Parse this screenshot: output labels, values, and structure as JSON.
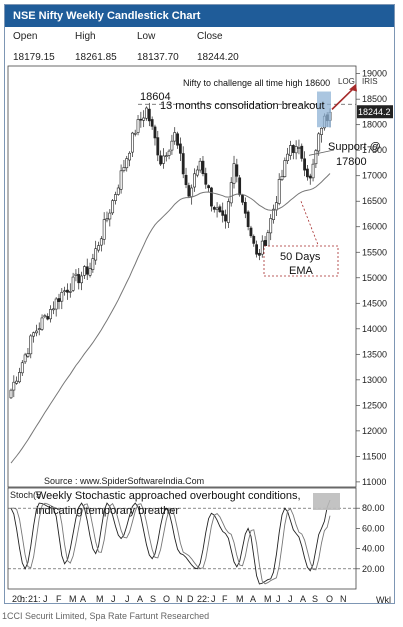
{
  "title": "NSE Nifty Weekly Candlestick Chart",
  "ohlc": {
    "headers": [
      "Open",
      "High",
      "Low",
      "Close"
    ],
    "values": [
      "18179.15",
      "18261.85",
      "18137.70",
      "18244.20"
    ]
  },
  "price_chart": {
    "y_ticks": [
      11000,
      11500,
      12000,
      12500,
      13000,
      13500,
      14000,
      14500,
      15000,
      15500,
      16000,
      16500,
      17000,
      17500,
      18000,
      18500,
      19000
    ],
    "y_tick_labels": [
      "11000",
      "11500",
      "12000",
      "12500",
      "13000",
      "13500",
      "14000",
      "14500",
      "15000",
      "15500",
      "16000",
      "16500",
      "17000",
      "17500",
      "18000",
      "18500",
      "19000"
    ],
    "ylim": [
      10900,
      19150
    ],
    "scale_labels": [
      "LOG",
      "IRIS"
    ],
    "last_price_label": "18244.2",
    "source": "Source : www.SpiderSoftwareIndia.Com",
    "annotations": {
      "target": "Nifty to challenge all time high 18600",
      "peak": "18604",
      "breakout": "13 months consolidation breakout",
      "support_line1": "Support @",
      "support_line2": "17800",
      "ema_line1": "50 Days",
      "ema_line2": "EMA"
    }
  },
  "stoch_chart": {
    "label": "Stoch(5",
    "annotation_line1": "Weekly Stochastic approached overbought conditions,",
    "annotation_line2": "indicating temporary breather",
    "y_ticks": [
      20,
      40,
      60,
      80
    ],
    "y_tick_labels": [
      "20.00",
      "40.00",
      "60.00",
      "80.00"
    ],
    "ylim": [
      0,
      100
    ]
  },
  "x_axis": {
    "labels": [
      "20:",
      "h:",
      "21:",
      "J",
      "F",
      "M",
      "A",
      "M",
      "J",
      "J",
      "A",
      "S",
      "O",
      "N",
      "D",
      "22:",
      "J",
      "F",
      "M",
      "A",
      "M",
      "J",
      "J",
      "A",
      "S",
      "O",
      "N"
    ],
    "unit_label": "Wkl"
  },
  "footnote": "1CCI Securit Limited, Spa Rate Fartunt Researched",
  "colors": {
    "title_bar": "#1f5c99",
    "candle": "#222222",
    "ema": "#777777",
    "arrow": "#a52a2a",
    "highlight": "#8fb3d6",
    "ref_line": "#555555"
  }
}
